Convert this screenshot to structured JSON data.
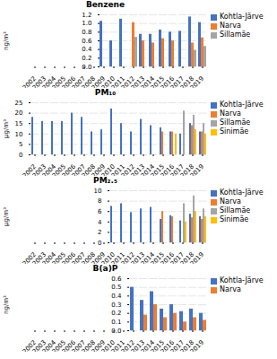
{
  "chart_data": [
    {
      "type": "bar",
      "title": "Benzene",
      "ylabel": "ng/m³",
      "categories": [
        "2002",
        "2003",
        "2004",
        "2005",
        "2006",
        "2007",
        "2008",
        "2009",
        "2010",
        "2011",
        "2012",
        "2013",
        "2014",
        "2015",
        "2016",
        "2017",
        "2018",
        "2019"
      ],
      "series": [
        {
          "name": "Kohtla-Järve",
          "color": "#4472C4",
          "values": [
            null,
            null,
            null,
            null,
            null,
            null,
            null,
            1.05,
            0.6,
            1.1,
            null,
            0.75,
            0.75,
            0.85,
            0.8,
            0.82,
            1.15,
            1.02
          ]
        },
        {
          "name": "Narva",
          "color": "#ED7D31",
          "values": [
            null,
            null,
            null,
            null,
            null,
            null,
            null,
            null,
            null,
            null,
            1.02,
            0.6,
            0.55,
            0.65,
            0.6,
            null,
            0.55,
            0.67
          ]
        },
        {
          "name": "Sillamäe",
          "color": "#A5A5A5",
          "values": [
            null,
            null,
            null,
            null,
            null,
            null,
            null,
            null,
            null,
            null,
            0.68,
            null,
            null,
            null,
            null,
            null,
            0.38,
            0.47
          ]
        }
      ],
      "ylim": [
        0,
        1.2
      ],
      "yticks": [
        {
          "value": 0,
          "label": "0.0"
        },
        0.2,
        0.4,
        0.6,
        0.8,
        {
          "value": 1.0,
          "label": "1.0"
        },
        1.2
      ],
      "grid": true,
      "legend": "right"
    },
    {
      "type": "bar",
      "title": "PM₁₀",
      "ylabel": "μg/m³",
      "categories": [
        "2002",
        "2003",
        "2004",
        "2005",
        "2006",
        "2007",
        "2008",
        "2009",
        "2010",
        "2011",
        "2012",
        "2013",
        "2014",
        "2015",
        "2016",
        "2017",
        "2018",
        "2019"
      ],
      "series": [
        {
          "name": "Kohtla-Järve",
          "color": "#4472C4",
          "values": [
            18,
            16,
            16,
            16,
            20,
            18,
            11,
            12,
            22,
            15,
            11,
            17,
            14,
            13,
            11,
            10,
            15,
            11
          ]
        },
        {
          "name": "Narva",
          "color": "#ED7D31",
          "values": [
            null,
            null,
            null,
            null,
            null,
            null,
            null,
            null,
            null,
            null,
            null,
            null,
            null,
            11,
            11,
            null,
            14,
            11
          ]
        },
        {
          "name": "Sillamäe",
          "color": "#A5A5A5",
          "values": [
            null,
            null,
            null,
            null,
            null,
            null,
            null,
            null,
            null,
            null,
            null,
            null,
            null,
            null,
            null,
            21,
            19,
            15
          ]
        },
        {
          "name": "Sinimäe",
          "color": "#FFC000",
          "values": [
            null,
            null,
            null,
            null,
            null,
            null,
            null,
            null,
            null,
            null,
            null,
            null,
            null,
            null,
            10,
            null,
            12,
            10
          ]
        }
      ],
      "ylim": [
        0,
        25
      ],
      "yticks": [
        0,
        5,
        10,
        15,
        20,
        25
      ],
      "grid": true,
      "legend": "right"
    },
    {
      "type": "bar",
      "title": "PM₂.₅",
      "ylabel": "μg/m³",
      "categories": [
        "2002",
        "2003",
        "2004",
        "2005",
        "2006",
        "2007",
        "2008",
        "2009",
        "2010",
        "2011",
        "2012",
        "2013",
        "2014",
        "2015",
        "2016",
        "2017",
        "2018",
        "2019"
      ],
      "series": [
        {
          "name": "Kohtla-Järve",
          "color": "#4472C4",
          "values": [
            null,
            null,
            null,
            null,
            null,
            null,
            null,
            null,
            7.0,
            7.5,
            5.8,
            6.5,
            6.8,
            4.5,
            5.2,
            4.2,
            5.5,
            5.0
          ]
        },
        {
          "name": "Narva",
          "color": "#ED7D31",
          "values": [
            null,
            null,
            null,
            null,
            null,
            null,
            null,
            null,
            null,
            null,
            null,
            null,
            null,
            6.0,
            5.0,
            null,
            4.8,
            4.5
          ]
        },
        {
          "name": "Sillamäe",
          "color": "#A5A5A5",
          "values": [
            null,
            null,
            null,
            null,
            null,
            null,
            null,
            null,
            null,
            null,
            null,
            null,
            null,
            null,
            null,
            7.5,
            9.0,
            6.5
          ]
        },
        {
          "name": "Sinimäe",
          "color": "#FFC000",
          "values": [
            null,
            null,
            null,
            null,
            null,
            null,
            null,
            null,
            null,
            null,
            null,
            null,
            null,
            null,
            null,
            4.0,
            6.0,
            5.0
          ]
        }
      ],
      "ylim": [
        0,
        10
      ],
      "yticks": [
        0,
        2,
        4,
        6,
        8,
        10
      ],
      "grid": true,
      "legend": "right"
    },
    {
      "type": "bar",
      "title": "B(a)P",
      "ylabel": "ng/m³",
      "categories": [
        "2002",
        "2003",
        "2004",
        "2005",
        "2006",
        "2007",
        "2008",
        "2009",
        "2010",
        "2011",
        "2012",
        "2013",
        "2014",
        "2015",
        "2016",
        "2017",
        "2018",
        "2019"
      ],
      "series": [
        {
          "name": "Kohtla-Järve",
          "color": "#4472C4",
          "values": [
            null,
            null,
            null,
            null,
            null,
            null,
            null,
            null,
            null,
            null,
            0.5,
            0.35,
            0.45,
            0.25,
            0.3,
            0.22,
            0.25,
            0.2
          ]
        },
        {
          "name": "Narva",
          "color": "#ED7D31",
          "values": [
            null,
            null,
            null,
            null,
            null,
            null,
            null,
            null,
            null,
            null,
            null,
            0.18,
            0.3,
            0.15,
            0.2,
            0.1,
            0.15,
            0.12
          ]
        }
      ],
      "ylim": [
        0,
        0.6
      ],
      "yticks": [
        {
          "value": 0,
          "label": "0.0"
        },
        0.1,
        0.2,
        0.3,
        0.4,
        0.5,
        0.6
      ],
      "grid": true,
      "legend": "right"
    }
  ]
}
